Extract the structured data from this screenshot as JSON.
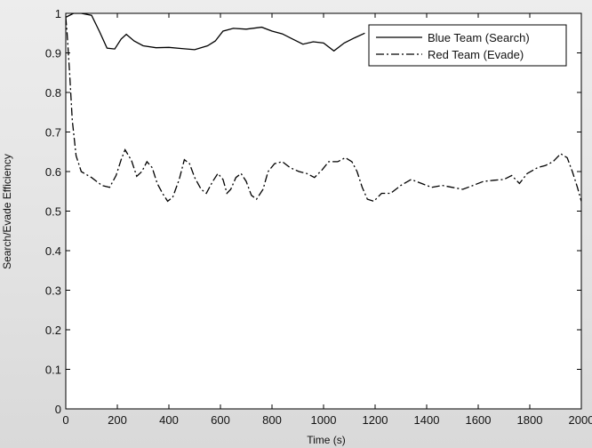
{
  "chart_data": {
    "type": "line",
    "title": "",
    "xlabel": "Time (s)",
    "ylabel": "Search/Evade Efficiency",
    "xlim": [
      0,
      2000
    ],
    "ylim": [
      0,
      1
    ],
    "grid": false,
    "legend_position": "top-right",
    "x_ticks": [
      0,
      200,
      400,
      600,
      800,
      1000,
      1200,
      1400,
      1600,
      1800,
      2000
    ],
    "y_ticks": [
      0,
      0.1,
      0.2,
      0.3,
      0.4,
      0.5,
      0.6,
      0.7,
      0.8,
      0.9,
      1
    ],
    "x_tick_labels": [
      "0",
      "200",
      "400",
      "600",
      "800",
      "1000",
      "1200",
      "1400",
      "1600",
      "1800",
      "2000"
    ],
    "y_tick_labels": [
      "0",
      "0.1",
      "0.2",
      "0.3",
      "0.4",
      "0.5",
      "0.6",
      "0.7",
      "0.8",
      "0.9",
      "1"
    ],
    "series": [
      {
        "name": "Blue Team (Search)",
        "line_style": "solid",
        "color": "#000000",
        "points": [
          [
            0,
            0.99
          ],
          [
            30,
            1.0
          ],
          [
            60,
            1.0
          ],
          [
            100,
            0.995
          ],
          [
            130,
            0.955
          ],
          [
            160,
            0.912
          ],
          [
            190,
            0.91
          ],
          [
            215,
            0.935
          ],
          [
            235,
            0.947
          ],
          [
            265,
            0.93
          ],
          [
            300,
            0.918
          ],
          [
            350,
            0.913
          ],
          [
            400,
            0.914
          ],
          [
            450,
            0.911
          ],
          [
            500,
            0.908
          ],
          [
            550,
            0.918
          ],
          [
            580,
            0.93
          ],
          [
            610,
            0.955
          ],
          [
            650,
            0.962
          ],
          [
            700,
            0.96
          ],
          [
            760,
            0.965
          ],
          [
            800,
            0.955
          ],
          [
            840,
            0.948
          ],
          [
            880,
            0.935
          ],
          [
            920,
            0.922
          ],
          [
            960,
            0.928
          ],
          [
            1000,
            0.925
          ],
          [
            1040,
            0.905
          ],
          [
            1080,
            0.925
          ],
          [
            1120,
            0.938
          ],
          [
            1160,
            0.95
          ]
        ]
      },
      {
        "name": "Red Team (Evade)",
        "line_style": "dash-dot",
        "color": "#000000",
        "points": [
          [
            0,
            0.99
          ],
          [
            5,
            0.95
          ],
          [
            15,
            0.85
          ],
          [
            25,
            0.73
          ],
          [
            40,
            0.64
          ],
          [
            60,
            0.6
          ],
          [
            100,
            0.585
          ],
          [
            140,
            0.565
          ],
          [
            170,
            0.56
          ],
          [
            195,
            0.59
          ],
          [
            215,
            0.63
          ],
          [
            230,
            0.655
          ],
          [
            255,
            0.628
          ],
          [
            275,
            0.588
          ],
          [
            295,
            0.6
          ],
          [
            315,
            0.625
          ],
          [
            335,
            0.61
          ],
          [
            355,
            0.57
          ],
          [
            375,
            0.545
          ],
          [
            395,
            0.525
          ],
          [
            415,
            0.535
          ],
          [
            440,
            0.58
          ],
          [
            460,
            0.63
          ],
          [
            480,
            0.62
          ],
          [
            500,
            0.585
          ],
          [
            525,
            0.555
          ],
          [
            545,
            0.545
          ],
          [
            570,
            0.575
          ],
          [
            590,
            0.595
          ],
          [
            610,
            0.58
          ],
          [
            625,
            0.545
          ],
          [
            640,
            0.555
          ],
          [
            660,
            0.585
          ],
          [
            680,
            0.595
          ],
          [
            700,
            0.575
          ],
          [
            720,
            0.54
          ],
          [
            740,
            0.53
          ],
          [
            765,
            0.555
          ],
          [
            785,
            0.6
          ],
          [
            810,
            0.62
          ],
          [
            840,
            0.625
          ],
          [
            870,
            0.61
          ],
          [
            905,
            0.6
          ],
          [
            935,
            0.595
          ],
          [
            965,
            0.585
          ],
          [
            995,
            0.605
          ],
          [
            1020,
            0.625
          ],
          [
            1055,
            0.625
          ],
          [
            1085,
            0.635
          ],
          [
            1110,
            0.625
          ],
          [
            1130,
            0.6
          ],
          [
            1150,
            0.56
          ],
          [
            1170,
            0.53
          ],
          [
            1195,
            0.525
          ],
          [
            1225,
            0.545
          ],
          [
            1260,
            0.545
          ],
          [
            1300,
            0.565
          ],
          [
            1340,
            0.58
          ],
          [
            1380,
            0.57
          ],
          [
            1420,
            0.56
          ],
          [
            1460,
            0.565
          ],
          [
            1500,
            0.56
          ],
          [
            1540,
            0.555
          ],
          [
            1580,
            0.565
          ],
          [
            1620,
            0.575
          ],
          [
            1660,
            0.578
          ],
          [
            1700,
            0.58
          ],
          [
            1730,
            0.59
          ],
          [
            1760,
            0.57
          ],
          [
            1790,
            0.595
          ],
          [
            1830,
            0.61
          ],
          [
            1860,
            0.615
          ],
          [
            1890,
            0.625
          ],
          [
            1920,
            0.645
          ],
          [
            1945,
            0.635
          ],
          [
            1965,
            0.6
          ],
          [
            1985,
            0.56
          ],
          [
            2000,
            0.525
          ]
        ]
      }
    ]
  }
}
